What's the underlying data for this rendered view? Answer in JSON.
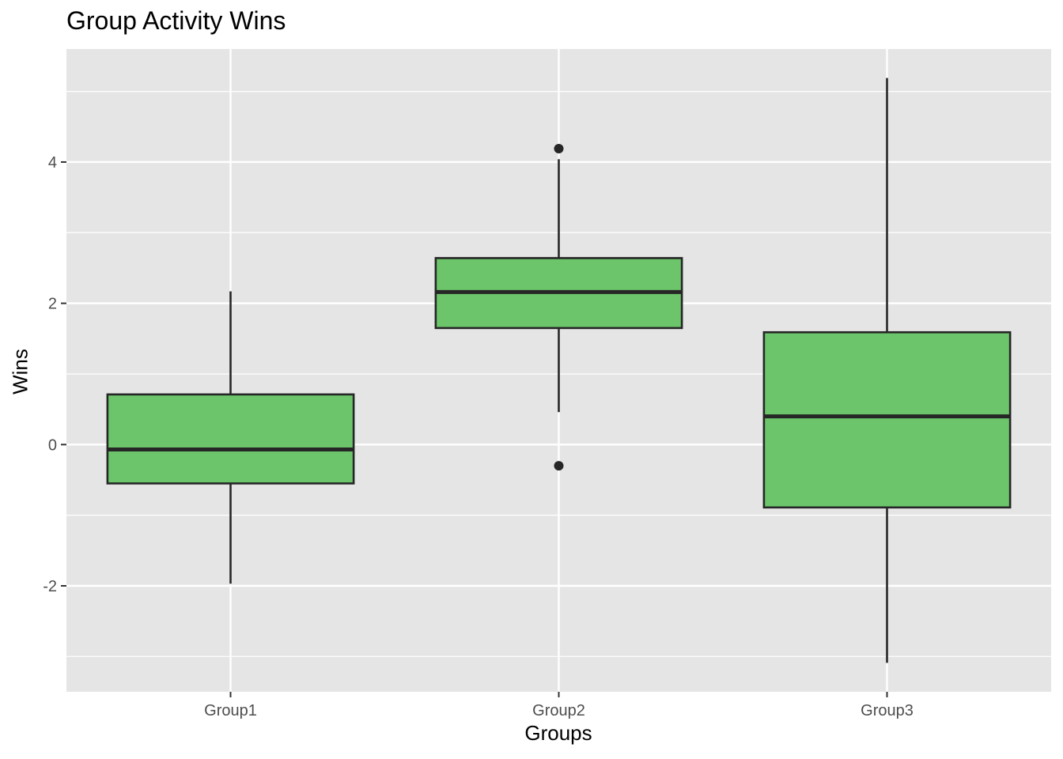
{
  "chart_data": {
    "type": "boxplot",
    "title": "Group Activity Wins",
    "xlabel": "Groups",
    "ylabel": "Wins",
    "categories": [
      "Group1",
      "Group2",
      "Group3"
    ],
    "yticks": [
      -2,
      0,
      2,
      4
    ],
    "ylim": [
      -3.5,
      5.6
    ],
    "grid": true,
    "fill_color": "#6CC56A",
    "panel_color": "#E5E5E5",
    "boxes": [
      {
        "category": "Group1",
        "whisker_low": -1.97,
        "q1": -0.55,
        "median": -0.07,
        "q3": 0.71,
        "whisker_high": 2.17,
        "outliers": []
      },
      {
        "category": "Group2",
        "whisker_low": 0.46,
        "q1": 1.65,
        "median": 2.16,
        "q3": 2.64,
        "whisker_high": 4.04,
        "outliers": [
          4.19,
          -0.3
        ]
      },
      {
        "category": "Group3",
        "whisker_low": -3.09,
        "q1": -0.89,
        "median": 0.4,
        "q3": 1.59,
        "whisker_high": 5.19,
        "outliers": []
      }
    ]
  }
}
